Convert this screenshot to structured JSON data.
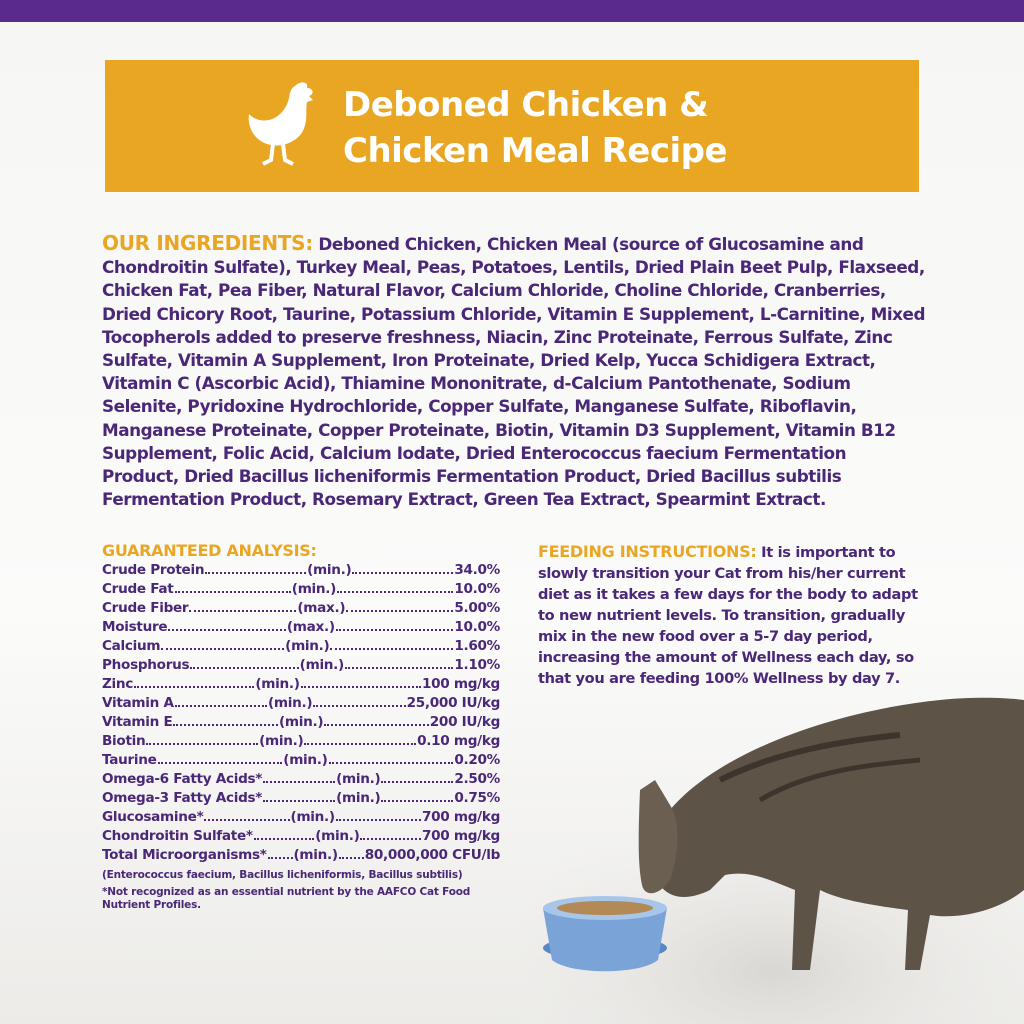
{
  "header": {
    "title_lines": [
      "Deboned Chicken &",
      "Chicken Meal Recipe"
    ]
  },
  "ingredients": {
    "heading": "OUR INGREDIENTS:",
    "text": "Deboned Chicken, Chicken Meal (source of Glucosamine and Chondroitin Sulfate), Turkey Meal, Peas, Potatoes, Lentils, Dried Plain Beet Pulp, Flaxseed, Chicken Fat, Pea Fiber, Natural Flavor, Calcium Chloride, Choline Chloride, Cranberries, Dried Chicory Root, Taurine, Potassium Chloride, Vitamin E Supplement, L-Carnitine, Mixed Tocopherols added to preserve freshness, Niacin, Zinc Proteinate, Ferrous Sulfate, Zinc Sulfate, Vitamin A Supplement, Iron Proteinate, Dried Kelp, Yucca Schidigera Extract, Vitamin C (Ascorbic Acid), Thiamine Mononitrate, d-Calcium Pantothenate, Sodium Selenite, Pyridoxine Hydrochloride, Copper Sulfate, Manganese Sulfate, Riboflavin, Manganese Proteinate, Copper Proteinate, Biotin, Vitamin D3 Supplement, Vitamin B12 Supplement, Folic Acid, Calcium Iodate, Dried Enterococcus faecium Fermentation Product, Dried Bacillus licheniformis Fermentation Product, Dried Bacillus subtilis Fermentation Product, Rosemary Extract, Green Tea Extract, Spearmint Extract."
  },
  "guaranteed_analysis": {
    "heading": "GUARANTEED ANALYSIS:",
    "rows": [
      {
        "nutrient": "Crude Protein",
        "basis": "(min.)",
        "value": "34.0%"
      },
      {
        "nutrient": "Crude Fat",
        "basis": "(min.)",
        "value": "10.0%"
      },
      {
        "nutrient": "Crude Fiber",
        "basis": "(max.)",
        "value": "5.00%"
      },
      {
        "nutrient": "Moisture",
        "basis": "(max.)",
        "value": "10.0%"
      },
      {
        "nutrient": "Calcium",
        "basis": "(min.)",
        "value": "1.60%"
      },
      {
        "nutrient": "Phosphorus",
        "basis": "(min.)",
        "value": "1.10%"
      },
      {
        "nutrient": "Zinc",
        "basis": "(min.)",
        "value": "100 mg/kg"
      },
      {
        "nutrient": "Vitamin A",
        "basis": "(min.)",
        "value": "25,000 IU/kg"
      },
      {
        "nutrient": "Vitamin E",
        "basis": "(min.)",
        "value": "200 IU/kg"
      },
      {
        "nutrient": "Biotin",
        "basis": "(min.)",
        "value": "0.10 mg/kg"
      },
      {
        "nutrient": "Taurine",
        "basis": "(min.)",
        "value": "0.20%"
      },
      {
        "nutrient": "Omega-6 Fatty Acids*",
        "basis": "(min.)",
        "value": "2.50%"
      },
      {
        "nutrient": "Omega-3 Fatty Acids*",
        "basis": "(min.)",
        "value": "0.75%"
      },
      {
        "nutrient": "Glucosamine*",
        "basis": "(min.)",
        "value": "700 mg/kg"
      },
      {
        "nutrient": "Chondroitin Sulfate*",
        "basis": "(min.)",
        "value": "700 mg/kg"
      },
      {
        "nutrient": "Total Microorganisms*",
        "basis": "(min.)",
        "value": "80,000,000 CFU/lb"
      }
    ],
    "notes": [
      "(Enterococcus faecium, Bacillus licheniformis, Bacillus subtilis)",
      "*Not recognized as an essential nutrient by the AAFCO Cat Food Nutrient Profiles."
    ]
  },
  "feeding_instructions": {
    "heading": "FEEDING INSTRUCTIONS:",
    "text": "It is important to slowly transition your Cat from his/her current diet as it takes a few days for the body to adapt to new nutrient levels. To transition, gradually mix in the new food over a 5-7 day period, increasing the amount of Wellness each day, so that you are feeding 100% Wellness by day 7."
  }
}
